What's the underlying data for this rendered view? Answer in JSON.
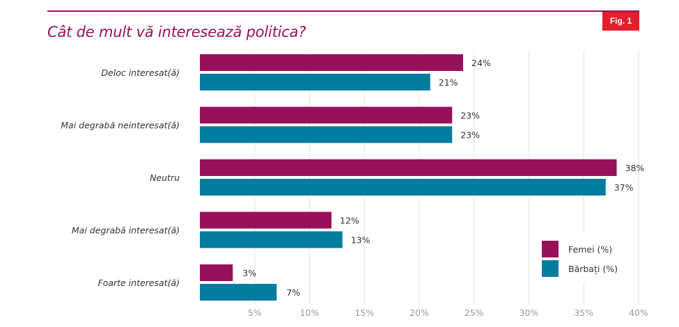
{
  "header": {
    "title": "Cât de mult vă interesează politica?",
    "figure_badge": "Fig. 1"
  },
  "colors": {
    "accent": "#97115a",
    "femei": "#97115a",
    "barbati": "#007c9e",
    "badge": "#e31e2d",
    "grid": "#e6e6e6"
  },
  "legend": [
    {
      "label": "Femei (%)",
      "color": "#97115a"
    },
    {
      "label": "Bărbați (%)",
      "color": "#007c9e"
    }
  ],
  "chart_data": {
    "type": "bar",
    "orientation": "horizontal",
    "title": "Cât de mult vă interesează politica?",
    "xlabel": "",
    "ylabel": "",
    "categories": [
      "Deloc interesat(ă)",
      "Mai degrabă neinteresat(ă)",
      "Neutru",
      "Mai degrabă interesat(ă)",
      "Foarte interesat(ă)"
    ],
    "series": [
      {
        "name": "Femei (%)",
        "color": "#97115a",
        "values": [
          24,
          23,
          38,
          12,
          3
        ]
      },
      {
        "name": "Bărbați (%)",
        "color": "#007c9e",
        "values": [
          21,
          23,
          37,
          13,
          7
        ]
      }
    ],
    "xlim": [
      0,
      40
    ],
    "xticks": [
      5,
      10,
      15,
      20,
      25,
      30,
      35,
      40
    ],
    "xtick_labels": [
      "5%",
      "10%",
      "15%",
      "20%",
      "25%",
      "30%",
      "35%",
      "40%"
    ],
    "value_suffix": "%",
    "grid": true,
    "legend_position": "bottom-right"
  }
}
